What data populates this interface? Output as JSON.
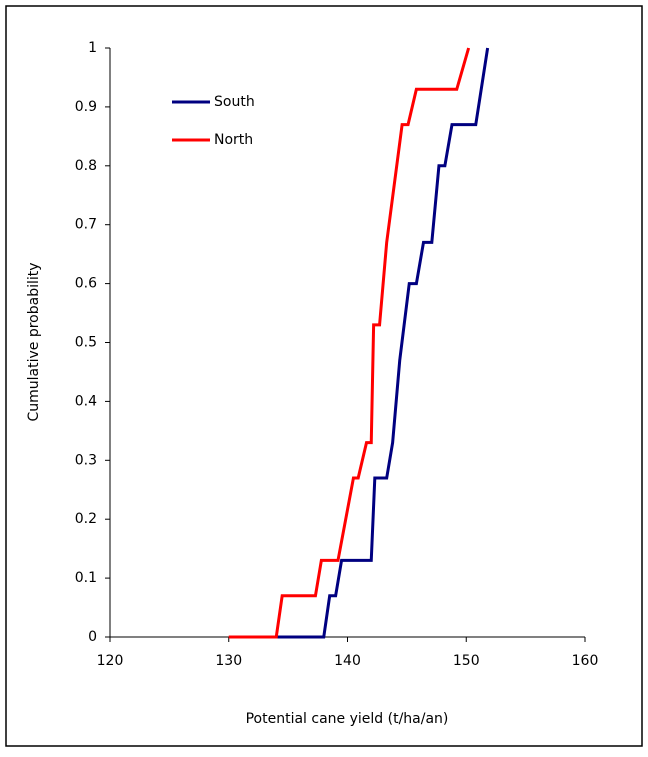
{
  "chart_data": {
    "type": "line",
    "xlabel": "Potential cane yield (t/ha/an)",
    "ylabel": "Cumulative probability",
    "series": [
      {
        "name": "South",
        "color": "#000080",
        "x": [
          134,
          138,
          138.5,
          139,
          139.5,
          142,
          142.3,
          143.3,
          143.8,
          144.4,
          145.2,
          145.8,
          146.4,
          147.1,
          147.7,
          148.2,
          148.8,
          150.8,
          151.8
        ],
        "values": [
          0,
          0,
          0.07,
          0.07,
          0.13,
          0.13,
          0.27,
          0.27,
          0.33,
          0.47,
          0.6,
          0.6,
          0.67,
          0.67,
          0.8,
          0.8,
          0.87,
          0.87,
          1
        ]
      },
      {
        "name": "North",
        "color": "#ff0000",
        "x": [
          130,
          134,
          134.5,
          137.3,
          137.8,
          139.2,
          140.5,
          140.9,
          141.6,
          142,
          142.2,
          142.7,
          143.3,
          144.6,
          145.1,
          145.8,
          149.2,
          150.2
        ],
        "values": [
          0,
          0,
          0.07,
          0.07,
          0.13,
          0.13,
          0.27,
          0.27,
          0.33,
          0.33,
          0.53,
          0.53,
          0.67,
          0.87,
          0.87,
          0.93,
          0.93,
          1
        ]
      }
    ],
    "xlim": [
      120,
      160
    ],
    "xticks": [
      120,
      130,
      140,
      150,
      160
    ],
    "ylim": [
      0,
      1
    ],
    "yticks": [
      0,
      0.1,
      0.2,
      0.3,
      0.4,
      0.5,
      0.6,
      0.7,
      0.8,
      0.9,
      1
    ],
    "grid": false,
    "legend": "upper left"
  }
}
